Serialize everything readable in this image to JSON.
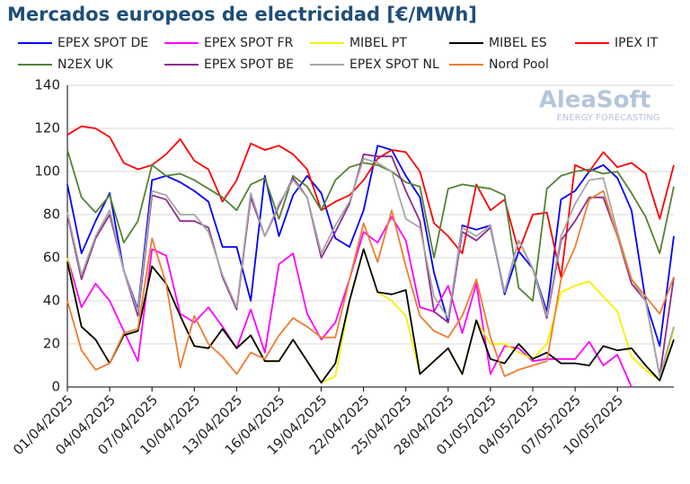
{
  "chart_data": {
    "type": "line",
    "title": "Mercados europeos de electricidad [€/MWh]",
    "watermark": {
      "name": "AleaSoft",
      "tagline": "ENERGY FORECASTING"
    },
    "categories": [
      "01/04/2025",
      null,
      null,
      "04/04/2025",
      null,
      null,
      "07/04/2025",
      null,
      null,
      "10/04/2025",
      null,
      null,
      "13/04/2025",
      null,
      null,
      "16/04/2025",
      null,
      null,
      "19/04/2025",
      null,
      null,
      "22/04/2025",
      null,
      null,
      "25/04/2025",
      null,
      null,
      "28/04/2025",
      null,
      null,
      "01/05/2025",
      null,
      null,
      "04/05/2025",
      null,
      null,
      "07/05/2025",
      null,
      null,
      "10/05/2025",
      null,
      null,
      null,
      null
    ],
    "ylim": [
      0,
      140
    ],
    "yticks": [
      0,
      20,
      40,
      60,
      80,
      100,
      120,
      140
    ],
    "grid": true,
    "series": [
      {
        "name": "EPEX SPOT DE",
        "color": "#0000ff",
        "values": [
          94,
          62,
          77,
          90,
          54,
          36,
          96,
          98,
          95,
          91,
          86,
          65,
          65,
          40,
          98,
          70,
          89,
          98,
          90,
          69,
          65,
          82,
          112,
          110,
          98,
          88,
          53,
          30,
          75,
          73,
          75,
          43,
          63,
          55,
          35,
          87,
          91,
          100,
          103,
          97,
          82,
          40,
          19,
          70
        ]
      },
      {
        "name": "EPEX SPOT FR",
        "color": "#ff00ff",
        "values": [
          60,
          37,
          48,
          40,
          26,
          12,
          64,
          61,
          34,
          30,
          37,
          28,
          18,
          36,
          16,
          57,
          62,
          34,
          22,
          30,
          50,
          72,
          67,
          79,
          68,
          37,
          35,
          47,
          25,
          48,
          6,
          19,
          18,
          12,
          13,
          13,
          13,
          21,
          10,
          15,
          0,
          null,
          null,
          null
        ]
      },
      {
        "name": "MIBEL PT",
        "color": "#f2f200",
        "values": [
          60,
          28,
          22,
          11,
          24,
          26,
          56,
          48,
          33,
          19,
          18,
          27,
          18,
          24,
          12,
          12,
          22,
          12,
          2,
          5,
          40,
          64,
          44,
          40,
          33,
          6,
          12,
          18,
          6,
          31,
          20,
          20,
          16,
          13,
          20,
          44,
          47,
          49,
          42,
          35,
          14,
          8,
          3,
          27
        ]
      },
      {
        "name": "MIBEL ES",
        "color": "#000000",
        "values": [
          58,
          28,
          22,
          11,
          24,
          26,
          56,
          48,
          33,
          19,
          18,
          27,
          18,
          24,
          12,
          12,
          22,
          12,
          2,
          11,
          40,
          64,
          44,
          43,
          45,
          6,
          12,
          18,
          6,
          31,
          13,
          11,
          20,
          13,
          16,
          11,
          11,
          10,
          19,
          17,
          18,
          10,
          3,
          22
        ]
      },
      {
        "name": "IPEX IT",
        "color": "#ff0000",
        "values": [
          117,
          121,
          120,
          116,
          104,
          101,
          103,
          108,
          115,
          105,
          101,
          86,
          96,
          113,
          110,
          112,
          108,
          101,
          82,
          86,
          89,
          96,
          106,
          110,
          109,
          100,
          76,
          70,
          62,
          94,
          82,
          87,
          63,
          80,
          81,
          51,
          103,
          100,
          109,
          102,
          104,
          99,
          78,
          103
        ]
      },
      {
        "name": "N2EX UK",
        "color": "#548235",
        "values": [
          110,
          88,
          81,
          89,
          67,
          77,
          103,
          98,
          99,
          96,
          92,
          88,
          82,
          94,
          97,
          78,
          98,
          93,
          82,
          96,
          102,
          104,
          103,
          100,
          95,
          93,
          60,
          92,
          94,
          93,
          92,
          89,
          46,
          40,
          92,
          98,
          100,
          101,
          99,
          100,
          90,
          79,
          62,
          93
        ]
      },
      {
        "name": "EPEX SPOT BE",
        "color": "#8e2c8e",
        "values": [
          80,
          50,
          69,
          80,
          54,
          33,
          89,
          87,
          77,
          77,
          74,
          51,
          36,
          88,
          70,
          84,
          97,
          88,
          60,
          72,
          85,
          108,
          107,
          107,
          91,
          77,
          35,
          30,
          72,
          68,
          74,
          44,
          68,
          55,
          32,
          68,
          77,
          88,
          88,
          70,
          48,
          40,
          5,
          51
        ]
      },
      {
        "name": "EPEX SPOT NL",
        "color": "#a6a6a6",
        "values": [
          81,
          52,
          70,
          82,
          54,
          35,
          91,
          89,
          80,
          80,
          72,
          52,
          37,
          90,
          70,
          85,
          96,
          88,
          62,
          75,
          86,
          106,
          104,
          100,
          78,
          74,
          42,
          32,
          74,
          70,
          75,
          44,
          68,
          55,
          33,
          70,
          85,
          96,
          97,
          72,
          50,
          40,
          5,
          28
        ]
      },
      {
        "name": "Nord Pool",
        "color": "#ed7d31",
        "values": [
          40,
          17,
          8,
          11,
          25,
          27,
          69,
          48,
          9,
          33,
          20,
          14,
          6,
          16,
          13,
          24,
          32,
          28,
          23,
          23,
          50,
          76,
          58,
          82,
          56,
          33,
          26,
          23,
          33,
          50,
          23,
          5,
          8,
          10,
          12,
          50,
          65,
          87,
          91,
          70,
          50,
          42,
          34,
          51
        ]
      }
    ]
  }
}
